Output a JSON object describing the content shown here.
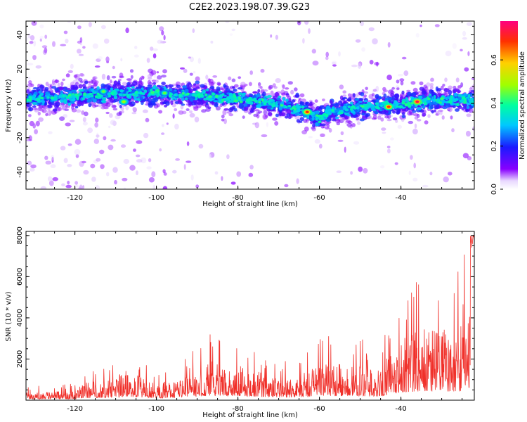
{
  "title": "C2E2.2023.198.07.39.G23",
  "charts": {
    "spectrogram": {
      "type": "heatmap",
      "xlabel": "Height of straight line (km)",
      "ylabel": "Frequency (Hz)",
      "xlim": [
        -132,
        -22
      ],
      "ylim": [
        -50,
        48
      ],
      "x_ticks": [
        -120,
        -100,
        -80,
        -60,
        -40
      ],
      "y_ticks": [
        -40,
        -20,
        0,
        20,
        40
      ],
      "colorbar": {
        "label": "Normalized spectral amplitude",
        "range": [
          0,
          0.78
        ],
        "ticks": [
          0.0,
          0.2,
          0.4,
          0.6
        ]
      },
      "ridge": {
        "x": [
          -132,
          -120,
          -110,
          -100,
          -90,
          -80,
          -70,
          -65,
          -62,
          -60,
          -57,
          -50,
          -45,
          -40,
          -35,
          -30,
          -22
        ],
        "y": [
          3,
          4,
          6,
          6,
          5,
          3,
          0,
          -3,
          -6,
          -9,
          -5,
          -2,
          -1,
          -1,
          1,
          2,
          2
        ]
      },
      "peaks": [
        {
          "x": -63,
          "y": -5,
          "v": 0.7
        },
        {
          "x": -43,
          "y": -2,
          "v": 0.7
        },
        {
          "x": -36,
          "y": 1,
          "v": 0.75
        },
        {
          "x": -108,
          "y": 1,
          "v": 0.5
        },
        {
          "x": -98,
          "y": 6,
          "v": 0.45
        },
        {
          "x": -113,
          "y": 7,
          "v": 0.45
        }
      ]
    },
    "snr": {
      "type": "line",
      "xlabel": "Height of straight line (km)",
      "ylabel": "SNR (10 * v/v)",
      "xlim": [
        -132,
        -22
      ],
      "ylim": [
        0,
        8200
      ],
      "x_ticks": [
        -120,
        -100,
        -80,
        -60,
        -40
      ],
      "y_ticks": [
        2000,
        4000,
        6000,
        8000
      ],
      "series_color": "#f0302a",
      "envelope": {
        "x": [
          -132,
          -120,
          -118,
          -110,
          -108,
          -100,
          -90,
          -87,
          -80,
          -75,
          -70,
          -65,
          -60,
          -55,
          -50,
          -46,
          -42,
          -38,
          -35,
          -30,
          -25,
          -23,
          -22
        ],
        "y": [
          400,
          450,
          900,
          1000,
          1500,
          800,
          1400,
          1900,
          1700,
          1400,
          1000,
          1200,
          1700,
          1800,
          1700,
          1400,
          2400,
          3400,
          3500,
          3500,
          3600,
          5200,
          6000
        ]
      }
    }
  }
}
